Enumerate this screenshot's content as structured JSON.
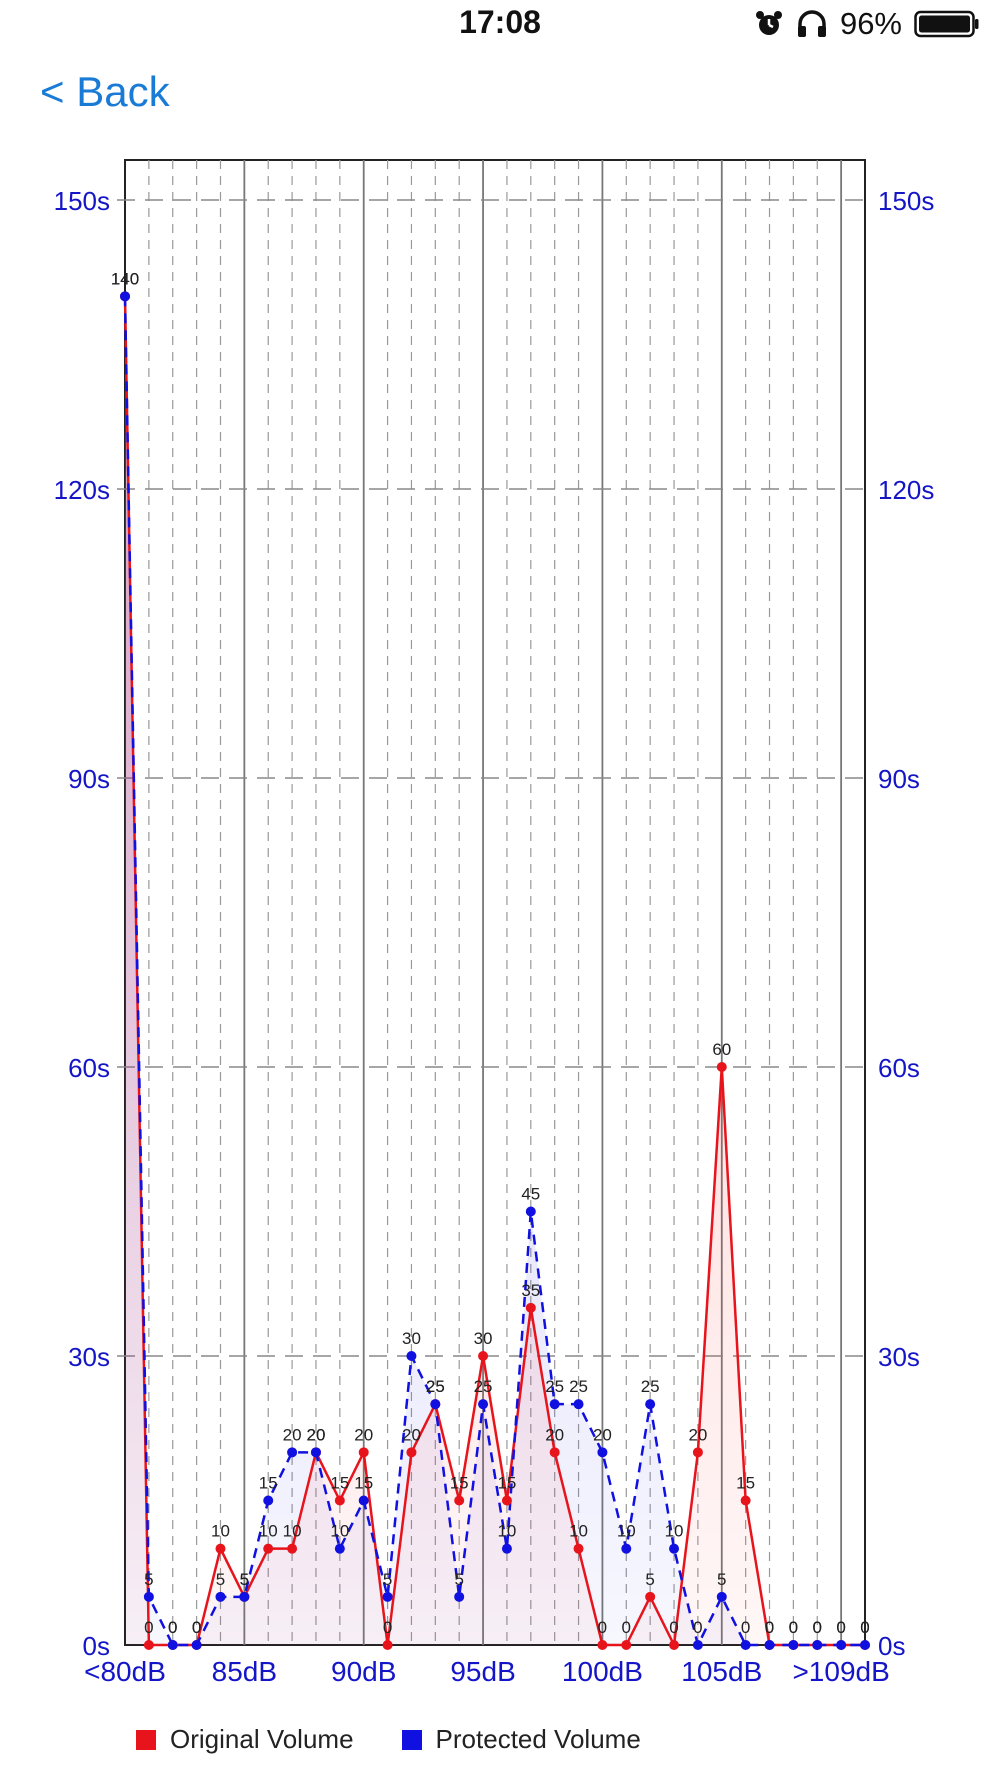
{
  "status_bar": {
    "time": "17:08",
    "icons": [
      "alarm-icon",
      "headphones-icon",
      "battery-icon"
    ],
    "battery": "96%"
  },
  "nav": {
    "back_label": "< Back"
  },
  "chart_data": {
    "type": "line",
    "x_tick_labels": [
      "<80dB",
      "85dB",
      "90dB",
      "95dB",
      "100dB",
      "105dB",
      ">109dB"
    ],
    "y_ticks": [
      "0s",
      "30s",
      "60s",
      "90s",
      "120s",
      "150s"
    ],
    "ylim": [
      0,
      150
    ],
    "grid": true,
    "legend_position": "bottom-left",
    "series": [
      {
        "name": "Original Volume",
        "color": "#e8141c",
        "line_style": "solid",
        "values": [
          140,
          0,
          0,
          0,
          10,
          5,
          10,
          10,
          20,
          15,
          20,
          0,
          20,
          25,
          15,
          30,
          15,
          35,
          20,
          10,
          0,
          0,
          5,
          0,
          20,
          60,
          15,
          0,
          0,
          0,
          0,
          0
        ]
      },
      {
        "name": "Protected Volume",
        "color": "#1010e0",
        "line_style": "dashed",
        "values": [
          140,
          5,
          0,
          0,
          5,
          5,
          15,
          20,
          20,
          10,
          15,
          5,
          30,
          25,
          5,
          25,
          10,
          45,
          25,
          25,
          20,
          10,
          25,
          10,
          0,
          5,
          0,
          0,
          0,
          0,
          0,
          0
        ]
      }
    ]
  }
}
